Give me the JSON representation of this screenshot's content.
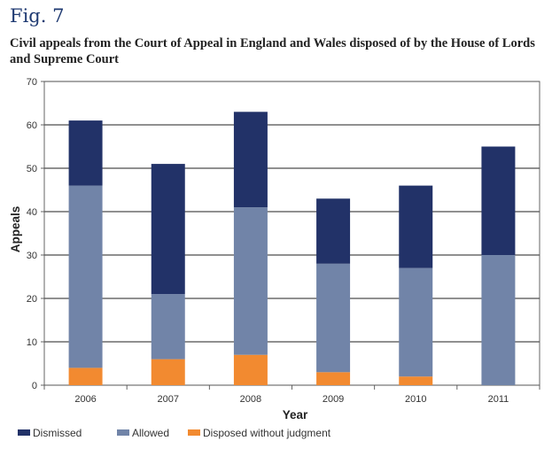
{
  "figure": {
    "label": "Fig. 7",
    "title": "Civil appeals from the Court of Appeal in England and Wales disposed of by the House of Lords and Supreme Court"
  },
  "chart_data": {
    "type": "bar",
    "stacked": true,
    "categories": [
      "2006",
      "2007",
      "2008",
      "2009",
      "2010",
      "2011"
    ],
    "series": [
      {
        "name": "Disposed without judgment",
        "color": "#f28a30",
        "values": [
          4,
          6,
          7,
          3,
          2,
          0
        ]
      },
      {
        "name": "Allowed",
        "color": "#7184a8",
        "values": [
          42,
          15,
          34,
          25,
          25,
          30
        ]
      },
      {
        "name": "Dismissed",
        "color": "#223268",
        "values": [
          15,
          30,
          22,
          15,
          19,
          25
        ]
      }
    ],
    "legend_order": [
      "Dismissed",
      "Allowed",
      "Disposed without judgment"
    ],
    "xlabel": "Year",
    "ylabel": "Appeals",
    "ylim": [
      0,
      70
    ],
    "yticks": [
      0,
      10,
      20,
      30,
      40,
      50,
      60,
      70
    ],
    "grid": true,
    "legend_position": "bottom-left"
  }
}
